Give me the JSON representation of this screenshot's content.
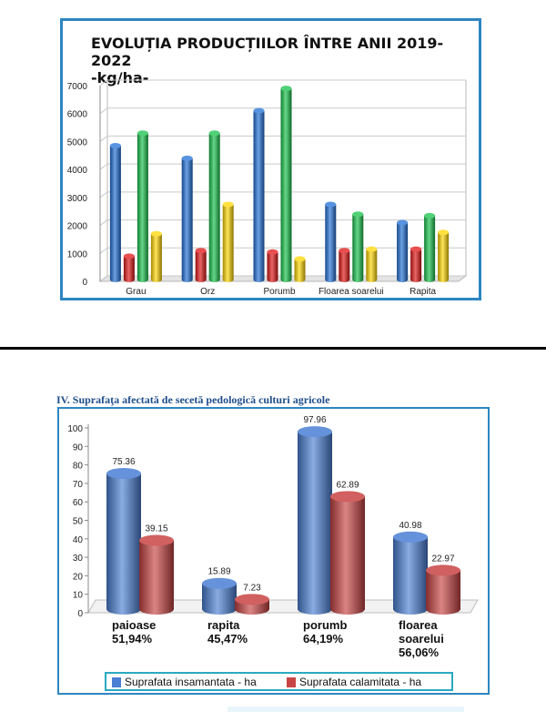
{
  "chart_data": [
    {
      "type": "bar",
      "title": "EVOLUȚIA PRODUCȚIILOR ÎNTRE ANII 2019-2022",
      "subtitle": "-kg/ha-",
      "categories": [
        "Grau",
        "Orz",
        "Porumb",
        "Floarea soarelui",
        "Rapita"
      ],
      "series": [
        {
          "color": "#1f6fd6",
          "values": [
            4850,
            4400,
            6100,
            2750,
            2100
          ]
        },
        {
          "color": "#e01414",
          "values": [
            900,
            1100,
            1050,
            1100,
            1150
          ]
        },
        {
          "color": "#17c24a",
          "values": [
            5300,
            5300,
            6900,
            2400,
            2350
          ]
        },
        {
          "color": "#ffd600",
          "values": [
            1700,
            2750,
            800,
            1150,
            1750
          ]
        }
      ],
      "yticks": [
        "0",
        "1000",
        "2000",
        "3000",
        "4000",
        "5000",
        "6000",
        "7000"
      ],
      "ylim": [
        0,
        7000
      ],
      "grid": true
    },
    {
      "type": "bar",
      "title": "IV. Suprafaţa afectată de secetă pedologică culturi agricole",
      "categories": [
        "paioase",
        "rapita",
        "porumb",
        "floarea soarelui"
      ],
      "category_labels": [
        [
          "paioase",
          "51,94%"
        ],
        [
          "rapita",
          "45,47%"
        ],
        [
          "porumb",
          "64,19%"
        ],
        [
          "floarea",
          "soarelui",
          "56,06%"
        ]
      ],
      "series": [
        {
          "name": "Suprafata insamantata - ha",
          "color": "#4a7fd4",
          "values": [
            75.36,
            15.89,
            97.96,
            40.98
          ],
          "labels": [
            "75.36",
            "15.89",
            "97.96",
            "40.98"
          ]
        },
        {
          "name": "Suprafata calamitata - ha",
          "color": "#c94444",
          "values": [
            39.15,
            7.23,
            62.89,
            22.97
          ],
          "labels": [
            "39.15",
            "7.23",
            "62.89",
            "22.97"
          ]
        }
      ],
      "yticks": [
        "0",
        "10",
        "20",
        "30",
        "40",
        "50",
        "60",
        "70",
        "80",
        "90",
        "100"
      ],
      "ylim": [
        0,
        100
      ],
      "legend_position": "bottom",
      "grid": false
    }
  ]
}
